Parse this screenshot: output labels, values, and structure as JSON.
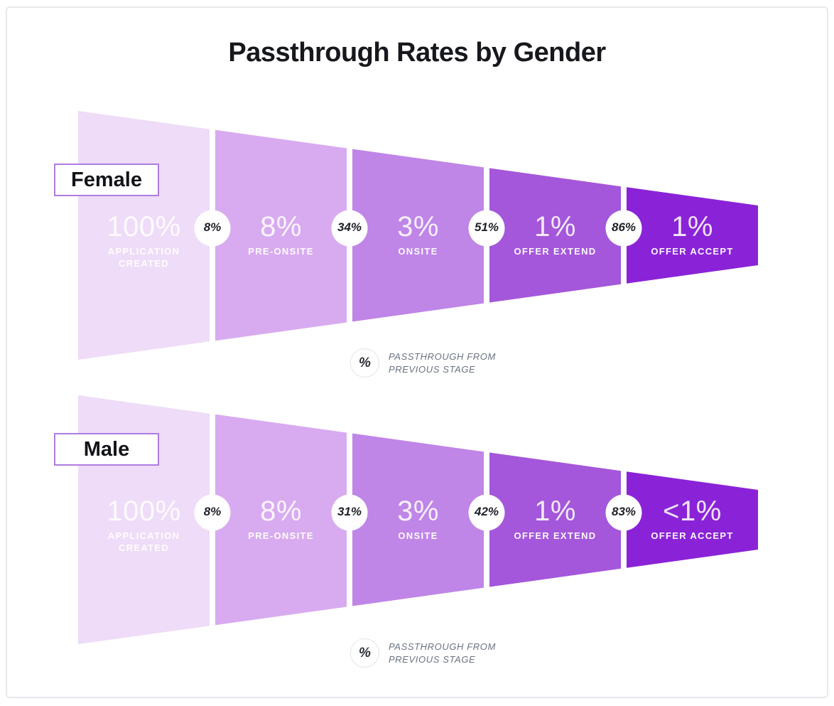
{
  "chart_data": {
    "type": "funnel",
    "title": "Passthrough Rates by Gender",
    "stages": [
      "Application Created",
      "Pre-Onsite",
      "Onsite",
      "Offer Extend",
      "Offer Accept"
    ],
    "stage_label_lines": [
      [
        "APPLICATION",
        "CREATED"
      ],
      [
        "PRE-ONSITE"
      ],
      [
        "ONSITE"
      ],
      [
        "OFFER EXTEND"
      ],
      [
        "OFFER ACCEPT"
      ]
    ],
    "segment_colors": [
      "#eedcf8",
      "#d8abf0",
      "#bf85e7",
      "#a457da",
      "#8a23d7"
    ],
    "series": [
      {
        "name": "Female",
        "values": [
          "100%",
          "8%",
          "3%",
          "1%",
          "1%"
        ],
        "passthrough_from_previous": [
          "8%",
          "34%",
          "51%",
          "86%"
        ]
      },
      {
        "name": "Male",
        "values": [
          "100%",
          "8%",
          "3%",
          "1%",
          "<1%"
        ],
        "passthrough_from_previous": [
          "8%",
          "31%",
          "42%",
          "83%"
        ]
      }
    ],
    "legend": {
      "symbol": "%",
      "lines": [
        "PASSTHROUGH FROM",
        "PREVIOUS STAGE"
      ]
    },
    "colors": {
      "series_label_border": "#af7ce1",
      "badge_background": "#ffffff",
      "badge_text": "#1f2127",
      "segment_text": "#ffffff",
      "legend_text": "#6a7280",
      "title_text": "#17181d",
      "card_border": "#e7e8ec"
    }
  }
}
